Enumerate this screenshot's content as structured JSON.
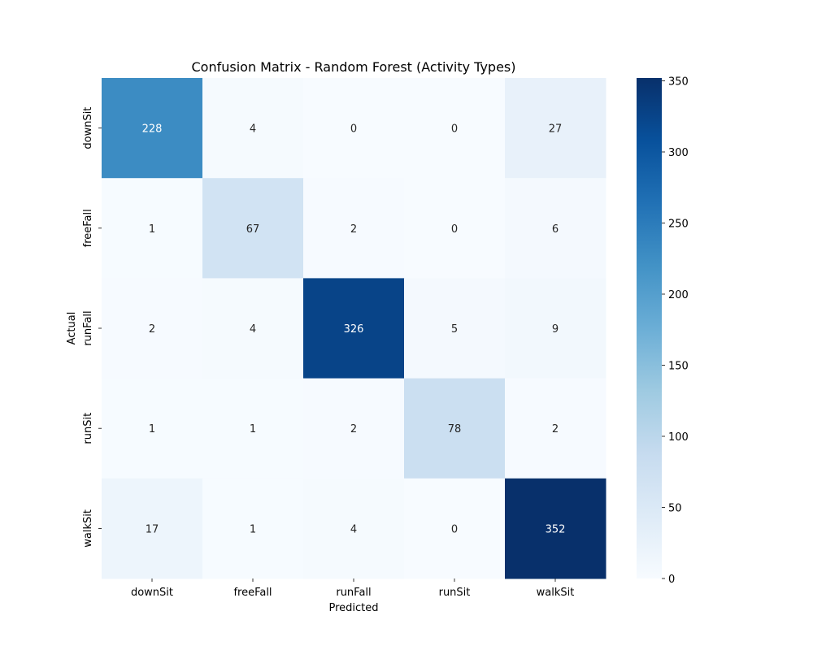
{
  "chart_data": {
    "type": "heatmap",
    "title": "Confusion Matrix - Random Forest (Activity Types)",
    "xlabel": "Predicted",
    "ylabel": "Actual",
    "x_categories": [
      "downSit",
      "freeFall",
      "runFall",
      "runSit",
      "walkSit"
    ],
    "y_categories": [
      "downSit",
      "freeFall",
      "runFall",
      "runSit",
      "walkSit"
    ],
    "values": [
      [
        228,
        4,
        0,
        0,
        27
      ],
      [
        1,
        67,
        2,
        0,
        6
      ],
      [
        2,
        4,
        326,
        5,
        9
      ],
      [
        1,
        1,
        2,
        78,
        2
      ],
      [
        17,
        1,
        4,
        0,
        352
      ]
    ],
    "colormap": "Blues",
    "colorbar": {
      "range": [
        0,
        352
      ],
      "ticks": [
        0,
        50,
        100,
        150,
        200,
        250,
        300,
        350
      ]
    }
  }
}
